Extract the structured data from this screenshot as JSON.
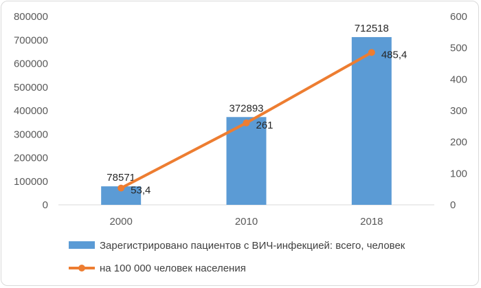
{
  "chart_data": {
    "type": "bar+line",
    "categories": [
      "2000",
      "2010",
      "2018"
    ],
    "series": [
      {
        "name": "Зарегистрировано пациентов с ВИЧ-инфекцией: всего, человек",
        "type": "bar",
        "axis": "left",
        "values": [
          78571,
          372893,
          712518
        ],
        "labels": [
          "78571",
          "372893",
          "712518"
        ],
        "color": "#5b9bd5"
      },
      {
        "name": "на 100 000 человек населения",
        "type": "line",
        "axis": "right",
        "values": [
          53.4,
          261,
          485.4
        ],
        "labels": [
          "53,4",
          "261",
          "485,4"
        ],
        "color": "#ed7d31"
      }
    ],
    "y_left": {
      "min": 0,
      "max": 800000,
      "ticks": [
        "0",
        "100000",
        "200000",
        "300000",
        "400000",
        "500000",
        "600000",
        "700000",
        "800000"
      ]
    },
    "y_right": {
      "min": 0,
      "max": 600,
      "ticks": [
        "0",
        "100",
        "200",
        "300",
        "400",
        "500",
        "600"
      ]
    },
    "grid": false,
    "legend_position": "bottom"
  }
}
